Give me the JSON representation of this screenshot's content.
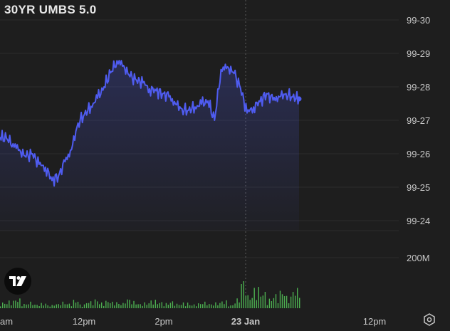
{
  "chart_title": "30YR UMBS 5.0",
  "colors": {
    "background": "#1e1e1e",
    "line": "#4f5cf0",
    "volume": "#4caf50",
    "grid": "#2c2c2c",
    "crosshair": "#5a5a5a"
  },
  "logo_icon": "tradingview-logo-icon",
  "settings_icon": "settings-gear-icon",
  "chart_data": [
    {
      "type": "line",
      "title": "30YR UMBS 5.0",
      "xlabel": "",
      "ylabel": "",
      "x_tick_labels": [
        "am",
        "12pm",
        "2pm",
        "23 Jan",
        "12pm"
      ],
      "y_tick_labels": [
        "99-30",
        "99-29",
        "99-28",
        "99-27",
        "99-26",
        "99-25",
        "99-24"
      ],
      "ylim": [
        99.7,
        100.0
      ],
      "y_scale_note": "ticks in 32nds: 99-24 = 99 + 24/32",
      "x": [
        0,
        0.5,
        1,
        1.5,
        2,
        2.5,
        3,
        3.5,
        4,
        4.5,
        5,
        5.5,
        6,
        6.5,
        7,
        7.5,
        8,
        8.5,
        9,
        9.5,
        10,
        10.5,
        11,
        11.5,
        12,
        12.5,
        13,
        13.5,
        14,
        14.5,
        15,
        15.5,
        16,
        16.5,
        17,
        17.5,
        18,
        18.5,
        19,
        19.5,
        20,
        20.5,
        21,
        21.5,
        22,
        22.5,
        23
      ],
      "series": [
        {
          "values": [
            99.825,
            99.823,
            99.815,
            99.806,
            99.795,
            99.8,
            99.784,
            99.78,
            99.76,
            99.767,
            99.788,
            99.806,
            99.846,
            99.859,
            99.871,
            99.883,
            99.9,
            99.921,
            99.939,
            99.932,
            99.915,
            99.91,
            99.906,
            99.897,
            99.894,
            99.89,
            99.885,
            99.874,
            99.867,
            99.865,
            99.87,
            99.874,
            99.879,
            99.85,
            99.926,
            99.93,
            99.92,
            99.898,
            99.861,
            99.87,
            99.878,
            99.89,
            99.88,
            99.885,
            99.89,
            99.885,
            99.882
          ]
        }
      ],
      "volume": [
        18,
        24,
        30,
        14,
        20,
        12,
        16,
        10,
        14,
        20,
        15,
        26,
        12,
        22,
        28,
        18,
        24,
        20,
        16,
        30,
        22,
        14,
        18,
        26,
        20,
        16,
        22,
        14,
        18,
        12,
        16,
        20,
        14,
        18,
        24,
        10,
        30,
        90,
        40,
        66,
        52,
        30,
        44,
        56,
        38,
        62,
        70
      ],
      "volume_axis_label": "200M",
      "volume_axis_value": 200,
      "last_point": 99.882
    }
  ]
}
